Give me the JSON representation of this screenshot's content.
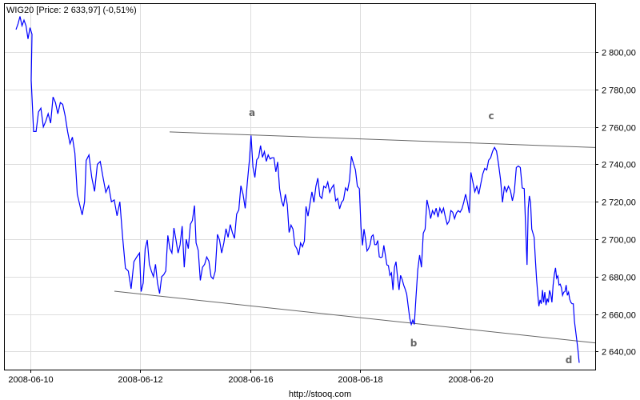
{
  "chart_data": {
    "type": "line",
    "title": "WIG20 [Price: 2 633,97] (-0,51%)",
    "xlabel": "",
    "ylabel": "",
    "ylim": [
      2630,
      2825
    ],
    "grid": true,
    "y_ticks": [
      "2 640,00",
      "2 660,00",
      "2 680,00",
      "2 700,00",
      "2 720,00",
      "2 740,00",
      "2 760,00",
      "2 780,00",
      "2 800,00"
    ],
    "y_tick_values": [
      2640,
      2660,
      2680,
      2700,
      2720,
      2740,
      2760,
      2780,
      2800
    ],
    "x_ticks": [
      "2008-06-10",
      "2008-06-12",
      "2008-06-16",
      "2008-06-18",
      "2008-06-20"
    ],
    "line_color": "#0000ff",
    "trendline_color": "#666666",
    "series": [
      {
        "days": [
          {
            "date": "2008-06-09",
            "values": [
              2812,
              2815,
              2819,
              2814,
              2817,
              2814,
              2807,
              2813,
              2809.5
            ]
          },
          {
            "date": "2008-06-10",
            "values": [
              2785,
              2757.5,
              2757.5,
              2768,
              2770,
              2760,
              2763,
              2767,
              2762,
              2776,
              2773,
              2767,
              2773,
              2772,
              2766,
              2757.5,
              2751,
              2754.5,
              2746,
              2724,
              2718.5,
              2713,
              2720
            ]
          },
          {
            "date": "2008-06-11",
            "values": [
              2742,
              2745,
              2733,
              2725.5,
              2740,
              2741.5,
              2733,
              2725,
              2728.5,
              2720,
              2721,
              2712.5,
              2720,
              2701,
              2684.5,
              2683,
              2673.5,
              2688,
              2690.5,
              2692.6
            ]
          },
          {
            "date": "2008-06-12",
            "values": [
              2672,
              2676.6,
              2695,
              2699.6,
              2686.6,
              2683,
              2680,
              2686.6,
              2676.6,
              2671,
              2680,
              2681,
              2683,
              2702,
              2695,
              2692.6,
              2706,
              2699.6,
              2692.6,
              2697,
              2707,
              2685,
              2700,
              2695,
              2708,
              2710,
              2718
            ]
          },
          {
            "date": "2008-06-13",
            "values": [
              2698,
              2694,
              2678,
              2685,
              2686.6,
              2690.5,
              2688.3,
              2680,
              2678.8,
              2683,
              2702.6,
              2699.6,
              2692.6,
              2698,
              2705.6,
              2701,
              2707.8,
              2703.5,
              2700.4,
              2713.4,
              2715.6,
              2728.6,
              2724,
              2716.5,
              2730,
              2742.4
            ]
          },
          {
            "date": "2008-06-16",
            "values": [
              2755.4,
              2738.5,
              2733,
              2742.4,
              2743.7,
              2750,
              2743.7,
              2746.8,
              2741.6,
              2745,
              2742.8,
              2743.5,
              2743.5,
              2736,
              2741.3,
              2727,
              2720.5,
              2717.5,
              2724,
              2718.4,
              2703.6,
              2707.5,
              2705.4,
              2696.7,
              2695,
              2691.5,
              2698,
              2696,
              2699
            ]
          },
          {
            "date": "2008-06-17",
            "values": [
              2717.5,
              2712.3,
              2718.8,
              2725.3,
              2719.7,
              2728.3,
              2732.6,
              2723,
              2721.8,
              2728.3,
              2727.4,
              2730.5,
              2725,
              2727.4,
              2729,
              2720.5,
              2721.8,
              2716.2,
              2719.7,
              2721,
              2727.4,
              2726,
              2731.3,
              2744.3,
              2740.4,
              2737,
              2728.3,
              2727
            ]
          },
          {
            "date": "2008-06-18",
            "values": [
              2706.7,
              2696.7,
              2705.4,
              2700.2,
              2693.7,
              2695,
              2697.1,
              2701.5,
              2702.3,
              2697.1,
              2697.1,
              2699.3,
              2690.6,
              2690.2,
              2690.6,
              2696.7,
              2691.5,
              2686.3,
              2685.9,
              2680.7,
              2682,
              2672.9,
              2685,
              2688,
              2679.8,
              2672.9,
              2680.7,
              2678.5,
              2675.5,
              2673.3,
              2670.6,
              2664,
              2657.7,
              2654.5,
              2656.8,
              2654.5
            ]
          },
          {
            "date": "2008-06-19",
            "values": [
              2668.4,
              2683.6,
              2691.5,
              2685,
              2703.2,
              2705.4,
              2721,
              2716.6,
              2711,
              2715.3,
              2713.2,
              2716.6,
              2711.8,
              2716.6,
              2714,
              2716.6,
              2711.8,
              2708,
              2709.6,
              2715.3,
              2714.4,
              2711,
              2714,
              2715.3,
              2714.4,
              2716.2,
              2719.7,
              2724,
              2719.7,
              2714
            ]
          },
          {
            "date": "2008-06-20",
            "values": [
              2735.7,
              2730.5,
              2725.3,
              2728.3,
              2724,
              2729.6,
              2734.8,
              2737.8,
              2737,
              2742.2,
              2743.5,
              2747,
              2749,
              2747,
              2740,
              2731.8,
              2719.7,
              2728.3,
              2725.3,
              2728.3,
              2726.1,
              2720.5,
              2725.3,
              2738.3,
              2739.1,
              2738.3,
              2727.4,
              2727
            ]
          },
          {
            "date": "2008-06-23",
            "values": [
              2703.6,
              2686.3,
              2716.6,
              2723.1,
              2719.7,
              2705.4,
              2703.2,
              2701,
              2689.3,
              2679.4,
              2671.1,
              2664.2,
              2667.6,
              2665.5,
              2672.8,
              2666.3,
              2671.7,
              2664.8,
              2668.3,
              2666.3,
              2672.7,
              2670.6,
              2666.3,
              2675.5,
              2681.2,
              2684.7,
              2679.2,
              2680.4,
              2675.5,
              2676,
              2674,
              2670,
              2671.7,
              2672,
              2675.5,
              2670,
              2671.7,
              2668,
              2666.3,
              2665.5,
              2665.5,
              2656,
              2650.8,
              2646,
              2640.6,
              2633.97
            ]
          }
        ]
      }
    ],
    "trendlines": [
      {
        "start_value": 2757.3,
        "end_value": 2749
      },
      {
        "start_value": 2672.2,
        "end_value": 2644.6
      }
    ],
    "annotations": [
      "a",
      "b",
      "c",
      "d"
    ]
  },
  "footer": "http://stooq.com"
}
